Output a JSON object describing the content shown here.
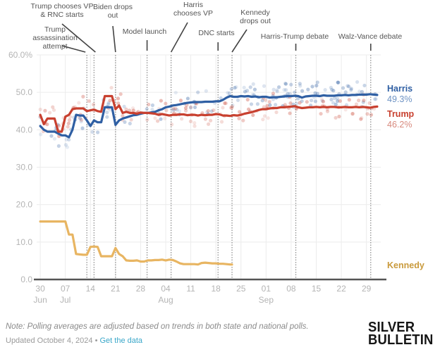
{
  "chart_data": {
    "type": "line",
    "title": "",
    "xlabel": "",
    "ylabel": "",
    "ylim": [
      0,
      60
    ],
    "y_ticks": [
      "0.0",
      "10.0",
      "20.0",
      "30.0",
      "40.0",
      "50.0",
      "60.0%"
    ],
    "y_tick_values": [
      0,
      10,
      20,
      30,
      40,
      50,
      60
    ],
    "x_range_days": [
      -1,
      95
    ],
    "x_ticks": [
      {
        "day": 0,
        "label": "30",
        "month": "Jun"
      },
      {
        "day": 7,
        "label": "07",
        "month": "Jul"
      },
      {
        "day": 14,
        "label": "14",
        "month": ""
      },
      {
        "day": 21,
        "label": "21",
        "month": ""
      },
      {
        "day": 28,
        "label": "28",
        "month": ""
      },
      {
        "day": 35,
        "label": "04",
        "month": "Aug"
      },
      {
        "day": 42,
        "label": "11",
        "month": ""
      },
      {
        "day": 49,
        "label": "18",
        "month": ""
      },
      {
        "day": 56,
        "label": "25",
        "month": ""
      },
      {
        "day": 63,
        "label": "01",
        "month": "Sep"
      },
      {
        "day": 70,
        "label": "08",
        "month": ""
      },
      {
        "day": 77,
        "label": "15",
        "month": ""
      },
      {
        "day": 84,
        "label": "22",
        "month": ""
      },
      {
        "day": 91,
        "label": "29",
        "month": ""
      }
    ],
    "x_day_zero": "2024-06-30",
    "grid": true,
    "events": [
      {
        "day": 13,
        "label": [
          "Trump",
          "assassination",
          "attempt"
        ]
      },
      {
        "day": 15,
        "label": [
          "Trump chooses VP",
          "& RNC starts"
        ]
      },
      {
        "day": 21,
        "label": [
          "Biden drops",
          "out"
        ]
      },
      {
        "day": 29.8,
        "label": [
          "Model launch"
        ]
      },
      {
        "day": 36.5,
        "label": [
          "Harris",
          "chooses VP"
        ]
      },
      {
        "day": 49.6,
        "label": [
          "DNC starts"
        ]
      },
      {
        "day": 53.5,
        "label": [
          "Kennedy",
          "drops out"
        ]
      },
      {
        "day": 71.3,
        "label": [
          "Harris-Trump debate"
        ]
      },
      {
        "day": 92.2,
        "label": [
          "Walz-Vance debate"
        ]
      }
    ],
    "series": [
      {
        "name": "Harris",
        "color": "#2f5fa3",
        "end_value": "49.3%",
        "points": [
          [
            0,
            41
          ],
          [
            1,
            40
          ],
          [
            2,
            39.5
          ],
          [
            4,
            39.5
          ],
          [
            5,
            39
          ],
          [
            6,
            38.5
          ],
          [
            7,
            38.5
          ],
          [
            8,
            38
          ],
          [
            9,
            40
          ],
          [
            10,
            44
          ],
          [
            11,
            43.8
          ],
          [
            12,
            43.8
          ],
          [
            13,
            42.5
          ],
          [
            14,
            41
          ],
          [
            15,
            42.5
          ],
          [
            16,
            42
          ],
          [
            17,
            42
          ],
          [
            18,
            46
          ],
          [
            19,
            46
          ],
          [
            20,
            46
          ],
          [
            21,
            41.3
          ],
          [
            22,
            42.5
          ],
          [
            23,
            43
          ],
          [
            24,
            43.3
          ],
          [
            25,
            43.6
          ],
          [
            26,
            43.9
          ],
          [
            27,
            44
          ],
          [
            28,
            44.3
          ],
          [
            29,
            44.5
          ],
          [
            30,
            44.5
          ],
          [
            32,
            44.8
          ],
          [
            33,
            45.2
          ],
          [
            34,
            45.5
          ],
          [
            35,
            46
          ],
          [
            36,
            46.2
          ],
          [
            37,
            46.5
          ],
          [
            38,
            46.6
          ],
          [
            39,
            46.8
          ],
          [
            40,
            47
          ],
          [
            41,
            47.2
          ],
          [
            42,
            47.3
          ],
          [
            43,
            47.4
          ],
          [
            44,
            47.4
          ],
          [
            45,
            47.4
          ],
          [
            46,
            47.5
          ],
          [
            47,
            47.5
          ],
          [
            48,
            47.5
          ],
          [
            49,
            47.6
          ],
          [
            50,
            47.6
          ],
          [
            51,
            48
          ],
          [
            52,
            48.6
          ],
          [
            53,
            49
          ],
          [
            54,
            48.8
          ],
          [
            55,
            48.8
          ],
          [
            56,
            49
          ],
          [
            57,
            48.9
          ],
          [
            58,
            49
          ],
          [
            59,
            48.8
          ],
          [
            60,
            48.9
          ],
          [
            61,
            48.7
          ],
          [
            62,
            48.8
          ],
          [
            63,
            48.8
          ],
          [
            64,
            48.6
          ],
          [
            65,
            48.7
          ],
          [
            66,
            48.7
          ],
          [
            67,
            48.8
          ],
          [
            68,
            48.9
          ],
          [
            69,
            49
          ],
          [
            70,
            49
          ],
          [
            71,
            49.1
          ],
          [
            72,
            49
          ],
          [
            73,
            48.6
          ],
          [
            74,
            48.9
          ],
          [
            75,
            49
          ],
          [
            76,
            49.1
          ],
          [
            77,
            49.1
          ],
          [
            78,
            49
          ],
          [
            79,
            49.2
          ],
          [
            80,
            49.1
          ],
          [
            81,
            49.1
          ],
          [
            82,
            49.1
          ],
          [
            83,
            49.2
          ],
          [
            84,
            49.2
          ],
          [
            85,
            49.3
          ],
          [
            86,
            49.2
          ],
          [
            87,
            49.3
          ],
          [
            88,
            49.3
          ],
          [
            89,
            49.4
          ],
          [
            90,
            49.4
          ],
          [
            91,
            49.4
          ],
          [
            92,
            49.5
          ],
          [
            93,
            49.4
          ],
          [
            94,
            49.3
          ]
        ]
      },
      {
        "name": "Trump",
        "color": "#c8402f",
        "end_value": "46.2%",
        "points": [
          [
            0,
            44
          ],
          [
            1,
            41.5
          ],
          [
            2,
            43
          ],
          [
            3,
            43
          ],
          [
            4,
            43
          ],
          [
            5,
            39.5
          ],
          [
            6,
            39.5
          ],
          [
            7,
            43.5
          ],
          [
            8,
            44
          ],
          [
            9,
            45.5
          ],
          [
            10,
            45.7
          ],
          [
            11,
            45.7
          ],
          [
            12,
            45.7
          ],
          [
            13,
            45
          ],
          [
            14,
            45.2
          ],
          [
            15,
            45.4
          ],
          [
            16,
            45
          ],
          [
            17,
            44.8
          ],
          [
            18,
            49
          ],
          [
            19,
            49
          ],
          [
            20,
            49
          ],
          [
            21,
            45.5
          ],
          [
            22,
            46.5
          ],
          [
            23,
            44.5
          ],
          [
            24,
            44.8
          ],
          [
            25,
            44.5
          ],
          [
            26,
            44.5
          ],
          [
            27,
            44.3
          ],
          [
            28,
            44.6
          ],
          [
            29,
            44.5
          ],
          [
            30,
            44.5
          ],
          [
            32,
            44.3
          ],
          [
            33,
            44
          ],
          [
            34,
            44.2
          ],
          [
            35,
            44
          ],
          [
            36,
            43.8
          ],
          [
            37,
            44
          ],
          [
            38,
            44
          ],
          [
            39,
            44.1
          ],
          [
            40,
            44.1
          ],
          [
            41,
            43.9
          ],
          [
            42,
            44
          ],
          [
            43,
            44
          ],
          [
            44,
            43.8
          ],
          [
            45,
            44
          ],
          [
            46,
            43.9
          ],
          [
            47,
            44
          ],
          [
            48,
            44
          ],
          [
            49,
            44.2
          ],
          [
            50,
            44.1
          ],
          [
            51,
            43.8
          ],
          [
            52,
            43.8
          ],
          [
            53,
            43.7
          ],
          [
            54,
            43.9
          ],
          [
            55,
            43.8
          ],
          [
            56,
            44
          ],
          [
            57,
            44.3
          ],
          [
            58,
            44.5
          ],
          [
            59,
            44.7
          ],
          [
            60,
            45
          ],
          [
            61,
            45.3
          ],
          [
            62,
            45.5
          ],
          [
            63,
            45.5
          ],
          [
            64,
            45.7
          ],
          [
            65,
            45.8
          ],
          [
            66,
            45.8
          ],
          [
            67,
            46
          ],
          [
            68,
            46
          ],
          [
            69,
            46.1
          ],
          [
            70,
            46.2
          ],
          [
            71,
            46.3
          ],
          [
            72,
            46
          ],
          [
            73,
            45.8
          ],
          [
            74,
            45.9
          ],
          [
            75,
            46
          ],
          [
            76,
            46
          ],
          [
            77,
            46.1
          ],
          [
            78,
            46
          ],
          [
            79,
            46.1
          ],
          [
            80,
            46
          ],
          [
            81,
            46.1
          ],
          [
            82,
            46.1
          ],
          [
            83,
            46
          ],
          [
            84,
            46
          ],
          [
            85,
            46.1
          ],
          [
            86,
            46
          ],
          [
            87,
            46
          ],
          [
            88,
            46.1
          ],
          [
            89,
            46
          ],
          [
            90,
            46.1
          ],
          [
            91,
            46
          ],
          [
            92,
            45.9
          ],
          [
            93,
            46.1
          ],
          [
            94,
            46.2
          ]
        ]
      },
      {
        "name": "Kennedy",
        "color": "#e8b562",
        "label_color": "#c99a3c",
        "end_value": "",
        "points": [
          [
            0,
            15.5
          ],
          [
            1,
            15.5
          ],
          [
            3,
            15.5
          ],
          [
            5,
            15.5
          ],
          [
            7,
            15.5
          ],
          [
            8,
            12
          ],
          [
            9,
            12
          ],
          [
            10,
            6.8
          ],
          [
            11,
            6.7
          ],
          [
            12,
            6.6
          ],
          [
            13,
            6.6
          ],
          [
            14,
            8.7
          ],
          [
            15,
            8.8
          ],
          [
            16,
            8.7
          ],
          [
            17,
            6.2
          ],
          [
            18,
            6.2
          ],
          [
            19,
            6.2
          ],
          [
            20,
            6.2
          ],
          [
            21,
            8.4
          ],
          [
            22,
            6.8
          ],
          [
            23,
            6.2
          ],
          [
            24,
            5.1
          ],
          [
            25,
            5
          ],
          [
            26,
            5
          ],
          [
            27,
            5.1
          ],
          [
            28,
            4.8
          ],
          [
            29,
            4.8
          ],
          [
            30,
            5.1
          ],
          [
            31,
            5.1
          ],
          [
            32,
            5.2
          ],
          [
            33,
            5.2
          ],
          [
            34,
            5.3
          ],
          [
            35,
            5.1
          ],
          [
            36,
            5.3
          ],
          [
            37,
            5.2
          ],
          [
            38,
            4.8
          ],
          [
            39,
            4.3
          ],
          [
            40,
            4.1
          ],
          [
            41,
            4.1
          ],
          [
            42,
            4.1
          ],
          [
            43,
            4.1
          ],
          [
            44,
            4
          ],
          [
            45,
            4.4
          ],
          [
            46,
            4.5
          ],
          [
            47,
            4.4
          ],
          [
            48,
            4.3
          ],
          [
            49,
            4.3
          ],
          [
            50,
            4.2
          ],
          [
            51,
            4.2
          ],
          [
            52,
            4.1
          ],
          [
            53,
            4
          ],
          [
            53.5,
            4
          ]
        ]
      }
    ]
  },
  "footer": {
    "note": "Note: Polling averages are adjusted based on trends in both state and national polls.",
    "updated": "Updated October 4, 2024 • ",
    "link": "Get the data",
    "logo_line1": "SILVER",
    "logo_line2": "BULLETIN"
  }
}
